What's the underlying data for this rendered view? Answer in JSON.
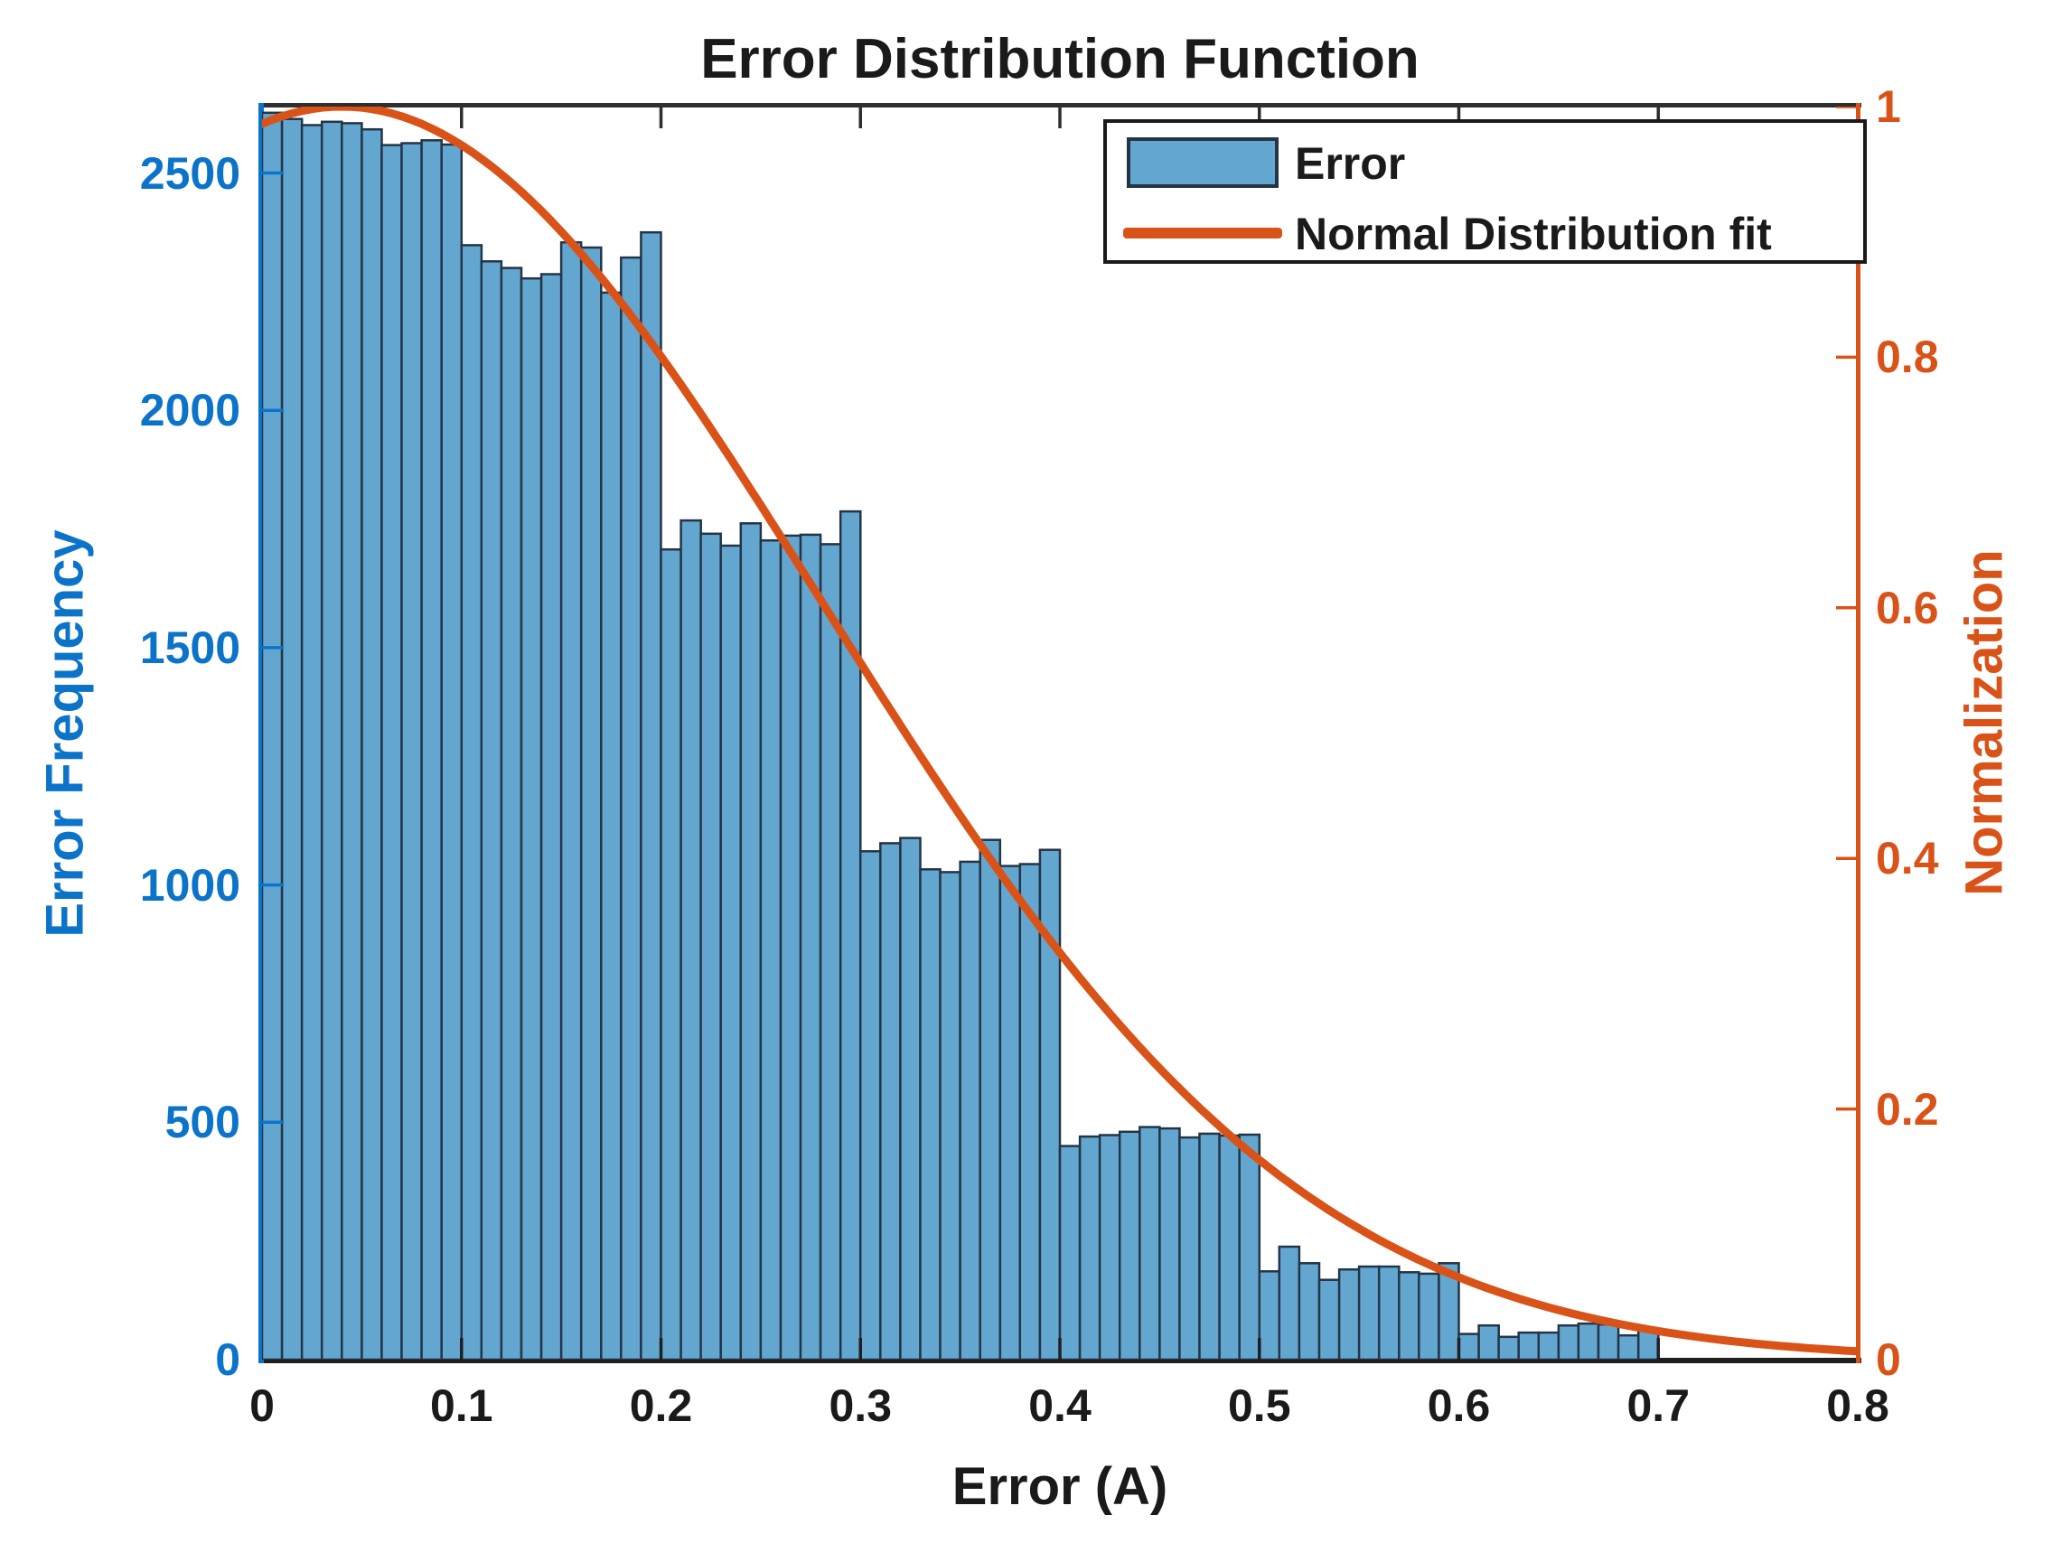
{
  "chart_data": {
    "type": "bar",
    "subtype": "histogram-with-fit-line",
    "title": "Error Distribution Function",
    "xlabel": "Error (A)",
    "ylabel_left": "Error Frequency",
    "ylabel_right": "Normalization",
    "xlim": [
      0,
      0.8
    ],
    "ylim_left": [
      0,
      2640
    ],
    "ylim_right": [
      0,
      1
    ],
    "grid": false,
    "x_ticks": [
      {
        "v": 0.0,
        "label": "0"
      },
      {
        "v": 0.1,
        "label": "0.1"
      },
      {
        "v": 0.2,
        "label": "0.2"
      },
      {
        "v": 0.3,
        "label": "0.3"
      },
      {
        "v": 0.4,
        "label": "0.4"
      },
      {
        "v": 0.5,
        "label": "0.5"
      },
      {
        "v": 0.6,
        "label": "0.6"
      },
      {
        "v": 0.7,
        "label": "0.7"
      },
      {
        "v": 0.8,
        "label": "0.8"
      }
    ],
    "y_ticks_left": [
      {
        "v": 0,
        "label": "0"
      },
      {
        "v": 500,
        "label": "500"
      },
      {
        "v": 1000,
        "label": "1000"
      },
      {
        "v": 1500,
        "label": "1500"
      },
      {
        "v": 2000,
        "label": "2000"
      },
      {
        "v": 2500,
        "label": "2500"
      }
    ],
    "y_ticks_right": [
      {
        "v": 0.0,
        "label": "0"
      },
      {
        "v": 0.2,
        "label": "0.2"
      },
      {
        "v": 0.4,
        "label": "0.4"
      },
      {
        "v": 0.6,
        "label": "0.6"
      },
      {
        "v": 0.8,
        "label": "0.8"
      },
      {
        "v": 1.0,
        "label": "1"
      }
    ],
    "bin_start": 0,
    "bin_width": 0.01,
    "series": [
      {
        "name": "Error",
        "type": "bar",
        "axis": "left",
        "frequencies": [
          2627,
          2614,
          2601,
          2608,
          2605,
          2592,
          2559,
          2563,
          2569,
          2560,
          2348,
          2314,
          2300,
          2278,
          2287,
          2354,
          2343,
          2248,
          2322,
          2375,
          1707,
          1768,
          1740,
          1715,
          1762,
          1726,
          1736,
          1738,
          1718,
          1787,
          1071,
          1088,
          1099,
          1033,
          1027,
          1049,
          1095,
          1040,
          1044,
          1074,
          450,
          470,
          473,
          480,
          490,
          487,
          468,
          476,
          472,
          474,
          186,
          238,
          203,
          168,
          190,
          196,
          196,
          184,
          181,
          203,
          54,
          72,
          48,
          57,
          57,
          72,
          76,
          74,
          51,
          63
        ]
      },
      {
        "name": "Normal Distribution fit",
        "type": "line",
        "axis": "right",
        "fit": {
          "shape": "gaussian",
          "mu": 0.04,
          "sigma": 0.24,
          "peak": 1.0
        }
      }
    ],
    "legend": {
      "position": "top-right",
      "entries": [
        {
          "label": "Error",
          "swatch": "patch"
        },
        {
          "label": "Normal Distribution fit",
          "swatch": "line"
        }
      ]
    },
    "colors": {
      "bar_fill": "#63a7d1",
      "bar_edge": "#243546",
      "curve": "#d95319",
      "left_axis": "#0c74c8",
      "right_axis": "#d95319",
      "text": "#1a1a1a",
      "background": "#ffffff"
    }
  }
}
